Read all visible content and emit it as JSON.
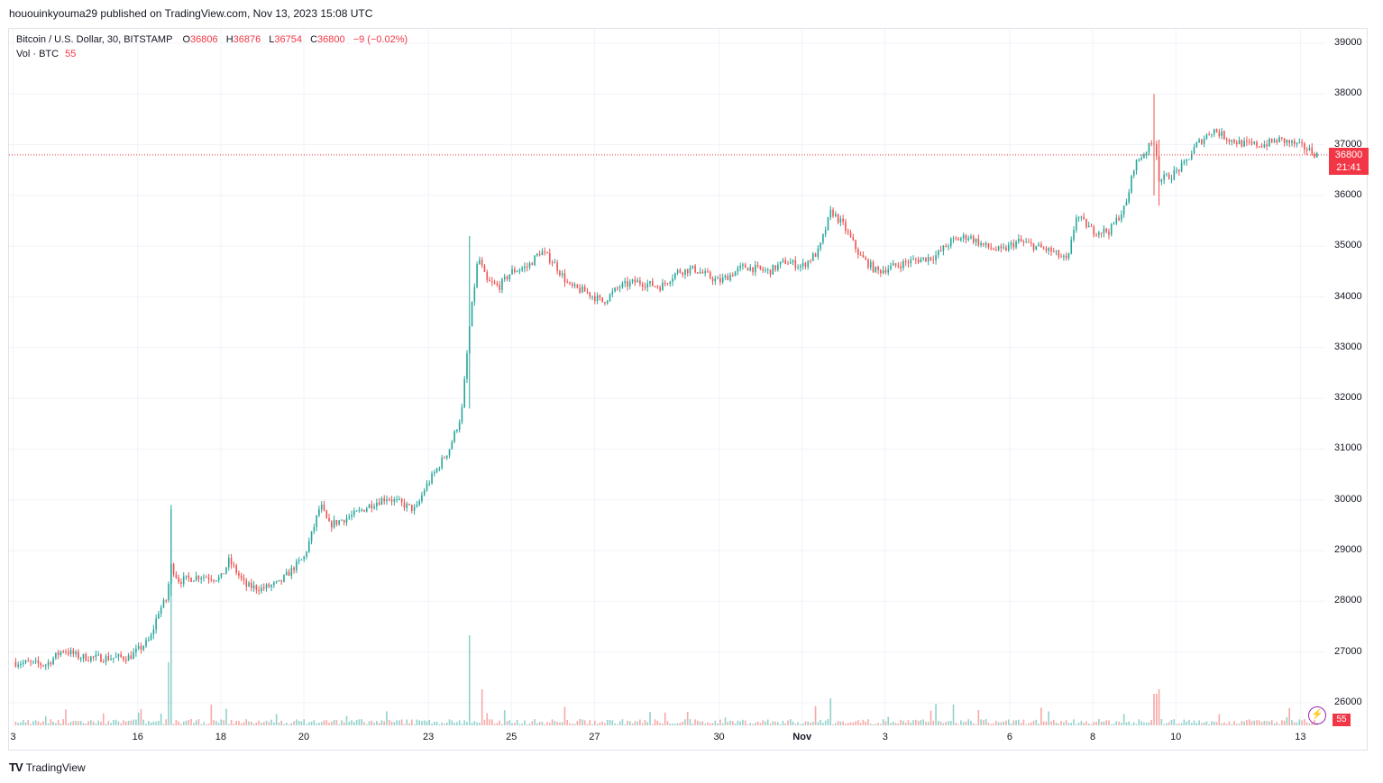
{
  "header": {
    "publish_line": "hououinkyouma29 published on TradingView.com, Nov 13, 2023 15:08 UTC"
  },
  "legend": {
    "symbol": "Bitcoin / U.S. Dollar, 30, BITSTAMP",
    "o_label": "O",
    "o_value": "36806",
    "h_label": "H",
    "h_value": "36876",
    "l_label": "L",
    "l_value": "36754",
    "c_label": "C",
    "c_value": "36800",
    "change": "−9 (−0.02%)",
    "vol_label": "Vol · BTC",
    "vol_value": "55"
  },
  "last_price": {
    "price": "36800",
    "countdown": "21:41",
    "color": "#f23645"
  },
  "volume_badge": "55",
  "brand": {
    "logo": "TV",
    "name": "TradingView"
  },
  "colors": {
    "up": "#26a69a",
    "down": "#ef5350",
    "grid": "#f0f3fa",
    "price_line": "#f23645"
  },
  "chart_data": {
    "type": "candlestick",
    "symbol": "Bitcoin / U.S. Dollar",
    "interval": "30",
    "exchange": "BITSTAMP",
    "y_ticks": [
      26000,
      27000,
      28000,
      29000,
      30000,
      31000,
      32000,
      33000,
      34000,
      35000,
      36000,
      37000,
      38000,
      39000
    ],
    "x_ticks": [
      {
        "label": "3",
        "day": 13
      },
      {
        "label": "16",
        "day": 16
      },
      {
        "label": "18",
        "day": 18
      },
      {
        "label": "20",
        "day": 20
      },
      {
        "label": "23",
        "day": 23
      },
      {
        "label": "25",
        "day": 25
      },
      {
        "label": "27",
        "day": 27
      },
      {
        "label": "30",
        "day": 30
      },
      {
        "label": "Nov",
        "day": 32,
        "bold": true
      },
      {
        "label": "3",
        "day": 34
      },
      {
        "label": "6",
        "day": 37
      },
      {
        "label": "8",
        "day": 39
      },
      {
        "label": "10",
        "day": 41
      },
      {
        "label": "13",
        "day": 44
      }
    ],
    "price_path": [
      [
        13.0,
        26800
      ],
      [
        13.8,
        26750
      ],
      [
        14.2,
        27050
      ],
      [
        14.6,
        26900
      ],
      [
        15.2,
        26880
      ],
      [
        15.8,
        26900
      ],
      [
        16.1,
        27100
      ],
      [
        16.3,
        27250
      ],
      [
        16.5,
        27800
      ],
      [
        16.7,
        28050
      ],
      [
        16.8,
        28700
      ],
      [
        17.0,
        28400
      ],
      [
        17.5,
        28500
      ],
      [
        18.0,
        28450
      ],
      [
        18.2,
        28800
      ],
      [
        18.6,
        28300
      ],
      [
        19.0,
        28250
      ],
      [
        19.4,
        28350
      ],
      [
        19.8,
        28700
      ],
      [
        20.0,
        28850
      ],
      [
        20.2,
        29350
      ],
      [
        20.4,
        29900
      ],
      [
        20.6,
        29500
      ],
      [
        21.2,
        29700
      ],
      [
        21.6,
        29900
      ],
      [
        22.0,
        30050
      ],
      [
        22.4,
        29900
      ],
      [
        22.7,
        29800
      ],
      [
        22.9,
        30200
      ],
      [
        23.2,
        30600
      ],
      [
        23.5,
        31000
      ],
      [
        23.8,
        31700
      ],
      [
        24.0,
        33500
      ],
      [
        24.2,
        34800
      ],
      [
        24.4,
        34300
      ],
      [
        24.7,
        34200
      ],
      [
        25.0,
        34500
      ],
      [
        25.4,
        34600
      ],
      [
        25.7,
        34900
      ],
      [
        26.0,
        34700
      ],
      [
        26.4,
        34200
      ],
      [
        26.8,
        34100
      ],
      [
        27.2,
        33900
      ],
      [
        27.6,
        34200
      ],
      [
        28.0,
        34300
      ],
      [
        28.6,
        34200
      ],
      [
        29.0,
        34500
      ],
      [
        29.4,
        34550
      ],
      [
        30.0,
        34300
      ],
      [
        30.6,
        34600
      ],
      [
        31.2,
        34500
      ],
      [
        31.6,
        34700
      ],
      [
        32.0,
        34600
      ],
      [
        32.4,
        34900
      ],
      [
        32.7,
        35700
      ],
      [
        33.0,
        35400
      ],
      [
        33.4,
        34800
      ],
      [
        33.8,
        34500
      ],
      [
        34.2,
        34600
      ],
      [
        34.6,
        34700
      ],
      [
        35.2,
        34800
      ],
      [
        35.6,
        35100
      ],
      [
        36.0,
        35200
      ],
      [
        36.4,
        35000
      ],
      [
        36.8,
        34900
      ],
      [
        37.2,
        35100
      ],
      [
        37.6,
        35000
      ],
      [
        38.0,
        34900
      ],
      [
        38.4,
        34700
      ],
      [
        38.6,
        35600
      ],
      [
        39.0,
        35300
      ],
      [
        39.4,
        35300
      ],
      [
        39.8,
        35800
      ],
      [
        40.0,
        36600
      ],
      [
        40.3,
        36900
      ],
      [
        40.5,
        37100
      ],
      [
        40.6,
        36300
      ],
      [
        40.9,
        36400
      ],
      [
        41.2,
        36600
      ],
      [
        41.5,
        37000
      ],
      [
        41.9,
        37300
      ],
      [
        42.3,
        37100
      ],
      [
        42.7,
        37000
      ],
      [
        43.1,
        37000
      ],
      [
        43.5,
        37100
      ],
      [
        43.9,
        37000
      ],
      [
        44.2,
        36900
      ],
      [
        44.4,
        36800
      ]
    ],
    "price_events": [
      {
        "day": 16.8,
        "high": 29900,
        "low": 28100
      },
      {
        "day": 24.0,
        "high": 35200,
        "low": 31800
      },
      {
        "day": 40.5,
        "high": 38000,
        "low": 36000
      },
      {
        "day": 40.6,
        "high": 37100,
        "low": 35800
      }
    ],
    "volume_spikes": [
      {
        "day": 16.8,
        "height": 240
      },
      {
        "day": 16.75,
        "height": 70
      },
      {
        "day": 24.0,
        "height": 100
      },
      {
        "day": 24.3,
        "height": 40
      },
      {
        "day": 32.7,
        "height": 30
      },
      {
        "day": 40.5,
        "height": 35
      },
      {
        "day": 40.6,
        "height": 40
      }
    ],
    "last_price": 36800
  }
}
